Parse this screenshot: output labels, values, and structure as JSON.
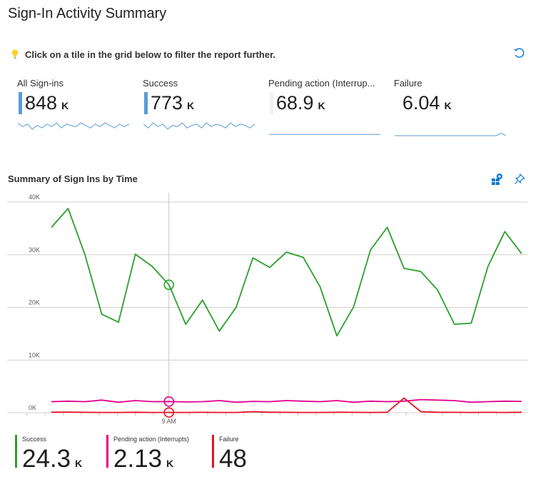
{
  "header": {
    "title": "Sign-In Activity Summary"
  },
  "info": {
    "text": "Click on a tile in the grid below to filter the report further.",
    "icon": "lightbulb-icon"
  },
  "tiles": [
    {
      "label": "All Sign-ins",
      "value": "848",
      "unit": "K",
      "color": "#5b9bd5"
    },
    {
      "label": "Success",
      "value": "773",
      "unit": "K",
      "color": "#5b9bd5"
    },
    {
      "label": "Pending action (Interrup...",
      "value": "68.9",
      "unit": "K",
      "color": "#eef2f8"
    },
    {
      "label": "Failure",
      "value": "6.04",
      "unit": "K",
      "color": "#ffffff"
    }
  ],
  "chart_section": {
    "title": "Summary of Sign Ins by Time"
  },
  "chart_data": {
    "type": "line",
    "title": "Summary of Sign Ins by Time",
    "ylim": [
      0,
      40000
    ],
    "yticks": [
      "0K",
      "10K",
      "20K",
      "30K",
      "40K"
    ],
    "xtick_label": "9 AM",
    "x_points": 29,
    "highlight_index": 7,
    "series": [
      {
        "name": "Success",
        "color": "#2aa02a",
        "values": [
          35200,
          38800,
          30000,
          18700,
          17200,
          30100,
          27800,
          24300,
          16800,
          21400,
          15500,
          20000,
          29400,
          27600,
          30500,
          29500,
          23900,
          14600,
          20100,
          30900,
          35200,
          27400,
          26800,
          23300,
          16800,
          17000,
          27800,
          34400,
          30200
        ]
      },
      {
        "name": "Pending action (Interrupts)",
        "color": "#e3008c",
        "values": [
          2100,
          2200,
          2100,
          2400,
          2000,
          2300,
          2100,
          2130,
          2050,
          2100,
          2300,
          2000,
          2150,
          2100,
          2300,
          2200,
          2100,
          2300,
          2000,
          2200,
          2100,
          2200,
          2500,
          2400,
          2300,
          2000,
          2100,
          2200,
          2150
        ]
      },
      {
        "name": "Failure",
        "color": "#e81123",
        "values": [
          100,
          120,
          80,
          50,
          60,
          100,
          50,
          48,
          60,
          80,
          50,
          60,
          200,
          100,
          80,
          60,
          50,
          100,
          80,
          60,
          100,
          2800,
          200,
          100,
          80,
          60,
          80,
          50,
          100
        ]
      }
    ]
  },
  "legend": [
    {
      "name": "Success",
      "value": "24.3",
      "unit": "K",
      "color": "#2aa02a"
    },
    {
      "name": "Pending action (Interrupts)",
      "value": "2.13",
      "unit": "K",
      "color": "#e3008c"
    },
    {
      "name": "Failure",
      "value": "48",
      "unit": "",
      "color": "#e81123"
    }
  ],
  "sparklines": [
    [
      10,
      7,
      9,
      5,
      8,
      6,
      9,
      7,
      10,
      6,
      9,
      8,
      7,
      10,
      8,
      6,
      9,
      7,
      10,
      8,
      6,
      9,
      7,
      9
    ],
    [
      9,
      6,
      10,
      7,
      9,
      5,
      8,
      7,
      10,
      6,
      8,
      9,
      6,
      10,
      7,
      9,
      8,
      6,
      10,
      7,
      9,
      8,
      6,
      9
    ],
    [
      1,
      1,
      1,
      1,
      1,
      1,
      1,
      1,
      1,
      1,
      1,
      1,
      1,
      1,
      1,
      1,
      1,
      1,
      1,
      1,
      1,
      1,
      1,
      1
    ],
    [
      0,
      0,
      0,
      0,
      0,
      0,
      0,
      0,
      0,
      0,
      0,
      0,
      0,
      0,
      0,
      0,
      0,
      0,
      0,
      0,
      0,
      0,
      2,
      0
    ]
  ]
}
